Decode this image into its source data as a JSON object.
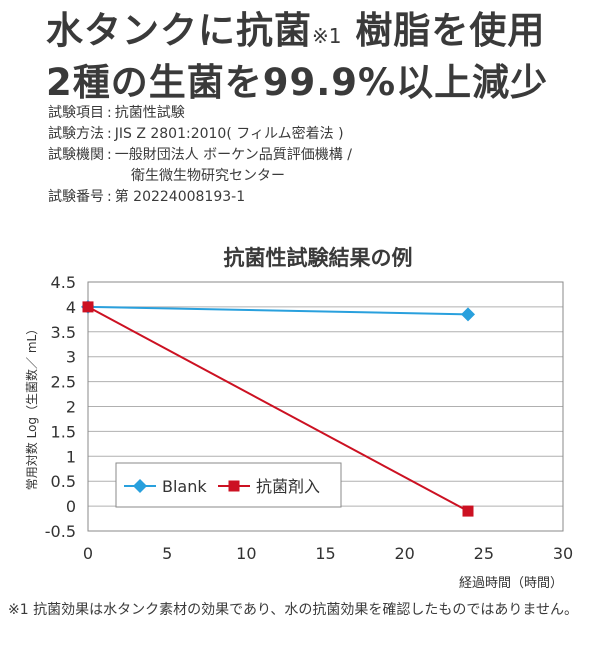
{
  "headline": {
    "line1_text": "水タンクに抗菌",
    "line1_note": "※1",
    "line1_tail": "樹脂を使用",
    "line2": "2種の生菌を99.9%以上減少"
  },
  "test_info": [
    {
      "key": "試験項目",
      "value": "抗菌性試験"
    },
    {
      "key": "試験方法",
      "value": "JIS Z 2801:2010( フィルム密着法 )"
    },
    {
      "key": "試験機関",
      "value": "一般財団法人 ボーケン品質評価機構 /"
    },
    {
      "key": "",
      "value": "衛生微生物研究センター"
    },
    {
      "key": "試験番号",
      "value": "第 20224008193-1"
    }
  ],
  "chart_data": {
    "type": "line",
    "title": "抗菌性試験結果の例",
    "xlabel": "経過時間（時間）",
    "ylabel": "常用対数 Log（生菌数／ mL）",
    "xlim": [
      0,
      30
    ],
    "ylim": [
      -0.5,
      4.5
    ],
    "x_ticks": [
      "0",
      "5",
      "10",
      "15",
      "20",
      "25",
      "30"
    ],
    "y_ticks": [
      "4.5",
      "4",
      "3.5",
      "3",
      "2.5",
      "2",
      "1.5",
      "1",
      "0.5",
      "0",
      "-0.5"
    ],
    "grid": true,
    "legend_position": "lower-left",
    "series": [
      {
        "name": "Blank",
        "color": "#29a0dd",
        "marker": "diamond",
        "points": [
          [
            0,
            4.0
          ],
          [
            24,
            3.85
          ]
        ]
      },
      {
        "name": "抗菌剤入",
        "color": "#cc1122",
        "marker": "square",
        "points": [
          [
            0,
            4.0
          ],
          [
            24,
            -0.1
          ]
        ]
      }
    ]
  },
  "footnote": "※1 抗菌効果は水タンク素材の効果であり、水の抗菌効果を確認したものではありません。"
}
